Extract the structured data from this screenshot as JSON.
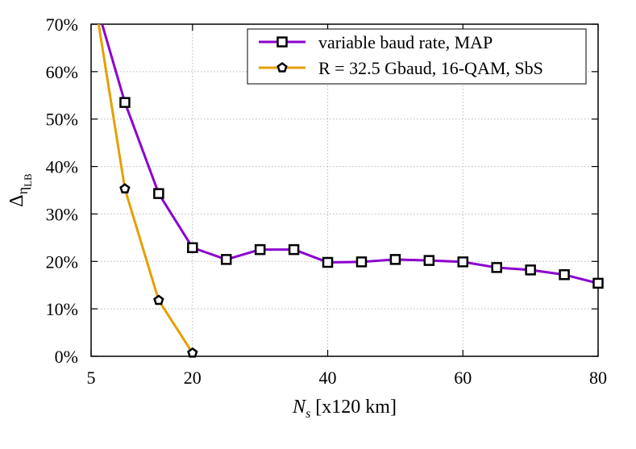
{
  "chart_data": {
    "type": "line",
    "title": "",
    "xlabel": {
      "main": "N",
      "sub": "s",
      "suffix": " [x120 km]"
    },
    "ylabel": {
      "main": "Δ",
      "sub": "η",
      "subsub": "LB"
    },
    "xlim": [
      5,
      80
    ],
    "ylim": [
      0,
      70
    ],
    "x_ticks": [
      5,
      20,
      40,
      60,
      80
    ],
    "x_tick_labels": [
      "5",
      "20",
      "40",
      "60",
      "80"
    ],
    "y_ticks": [
      0,
      10,
      20,
      30,
      40,
      50,
      60,
      70
    ],
    "y_tick_labels": [
      "0%",
      "10%",
      "20%",
      "30%",
      "40%",
      "50%",
      "60%",
      "70%"
    ],
    "grid": true,
    "legend_position": "top-right",
    "series": [
      {
        "name": "variable baud rate, MAP",
        "color": "#8b00cf",
        "marker": "square",
        "x": [
          5,
          10,
          15,
          20,
          25,
          30,
          35,
          40,
          45,
          50,
          55,
          60,
          65,
          70,
          75,
          80
        ],
        "y": [
          78,
          53.5,
          34.3,
          22.9,
          20.4,
          22.5,
          22.5,
          19.8,
          19.9,
          20.4,
          20.2,
          19.9,
          18.7,
          18.2,
          17.2,
          15.4
        ]
      },
      {
        "name": "R = 32.5 Gbaud, 16-QAM, SbS",
        "color": "#e5a000",
        "marker": "pentagon",
        "x": [
          5,
          10,
          15,
          20
        ],
        "y": [
          80,
          35.3,
          11.8,
          0.7
        ]
      }
    ]
  }
}
